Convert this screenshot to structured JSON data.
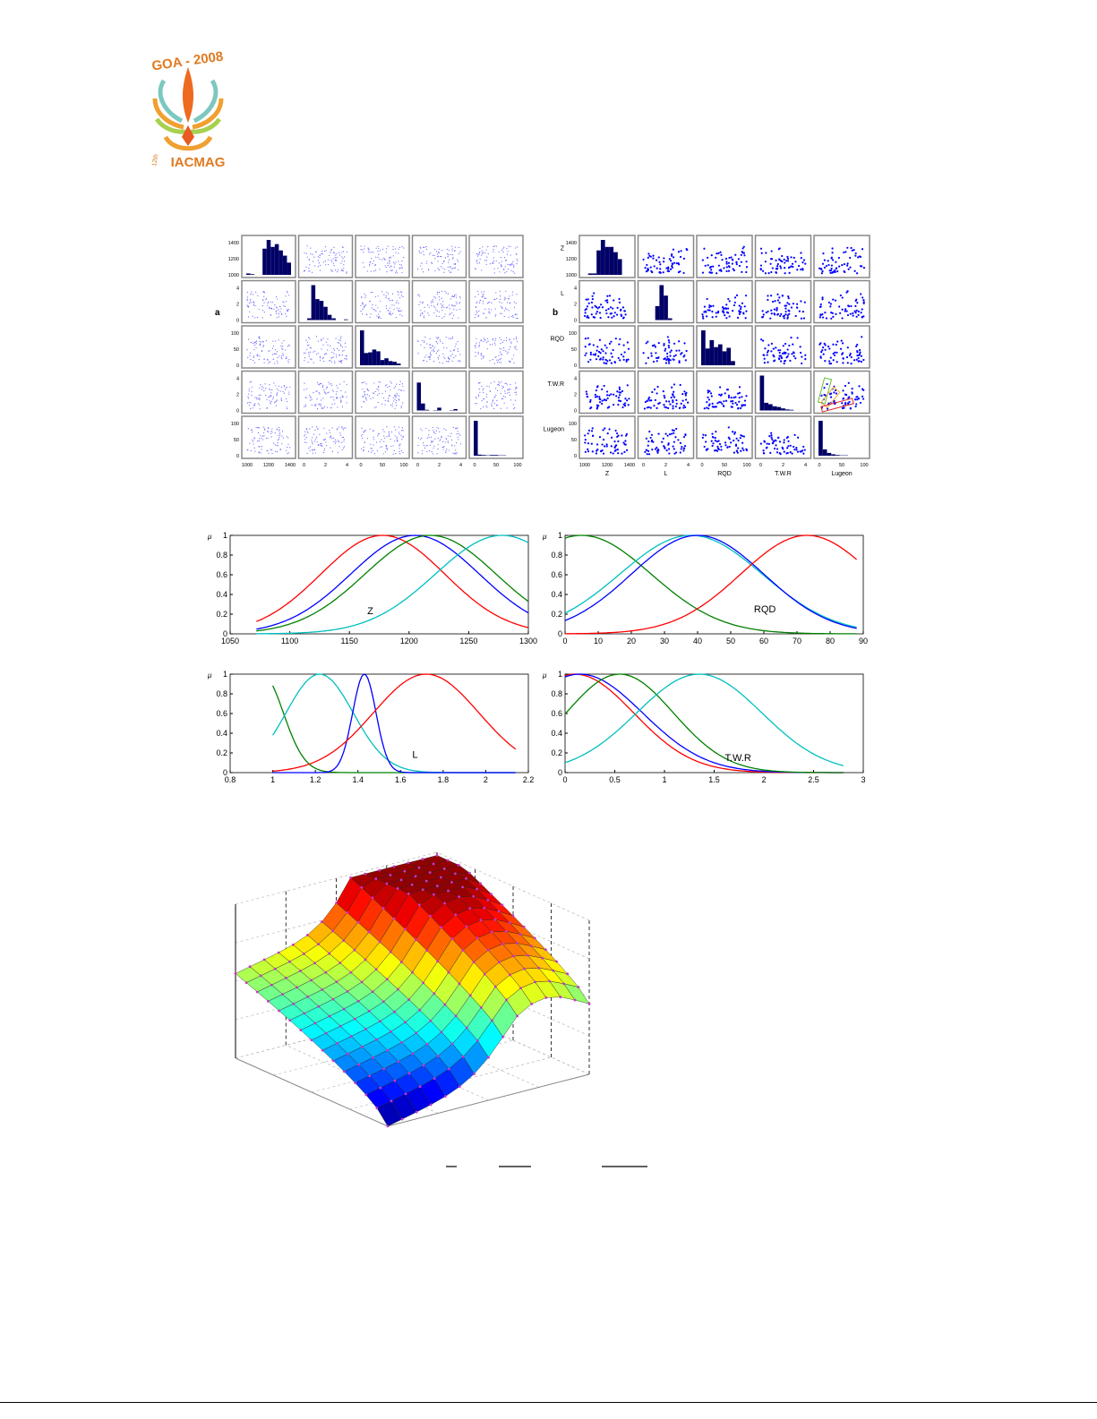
{
  "logo": {
    "text_top": "GOA - 2008",
    "text_bottom": "IACMAG",
    "edition": "12th"
  },
  "chart_data": [
    {
      "type": "scatter-matrix",
      "panel_letter": "a",
      "variables": [
        "",
        "",
        "",
        "",
        ""
      ],
      "row_ticks": [
        [
          "1400",
          "1200",
          "1000"
        ],
        [
          "4",
          "2",
          "0"
        ],
        [
          "100",
          "50",
          "0"
        ],
        [
          "4",
          "2",
          "0"
        ],
        [
          "100",
          "50",
          "0"
        ]
      ],
      "col_ticks": [
        [
          "1000",
          "1200",
          "1400"
        ],
        [
          "0",
          "2",
          "4"
        ],
        [
          "0",
          "50",
          "100"
        ],
        [
          "0",
          "2",
          "4"
        ],
        [
          "0",
          "50",
          "100"
        ]
      ],
      "hist": [
        [
          4,
          2,
          0,
          0,
          75,
          100,
          80,
          88,
          70,
          55,
          35
        ],
        [
          0,
          5,
          100,
          60,
          55,
          38,
          15,
          5,
          0,
          0,
          2
        ],
        [
          100,
          35,
          37,
          45,
          40,
          15,
          20,
          12,
          10,
          5,
          0
        ],
        [
          80,
          20,
          2,
          0,
          1,
          8,
          0,
          0,
          1,
          4,
          0
        ],
        [
          100,
          3,
          2,
          1,
          2,
          2,
          1,
          1,
          0,
          0,
          0
        ]
      ],
      "marker_color": "#6a6aff",
      "hist_color": "#000066"
    },
    {
      "type": "scatter-matrix",
      "panel_letter": "b",
      "variables": [
        "Z",
        "L",
        "RQD",
        "T.W.R",
        "Lugeon"
      ],
      "row_ticks": [
        [
          "1400",
          "1200",
          "1000"
        ],
        [
          "4",
          "2",
          "0"
        ],
        [
          "100",
          "50",
          "0"
        ],
        [
          "4",
          "2",
          "0"
        ],
        [
          "100",
          "50",
          "0"
        ]
      ],
      "col_ticks": [
        [
          "1000",
          "1200",
          "1400"
        ],
        [
          "0",
          "2",
          "4"
        ],
        [
          "0",
          "50",
          "100"
        ],
        [
          "0",
          "2",
          "4"
        ],
        [
          "0",
          "50",
          "100"
        ]
      ],
      "hist": [
        [
          0,
          4,
          4,
          70,
          100,
          80,
          80,
          65,
          45,
          0,
          0
        ],
        [
          0,
          0,
          0,
          40,
          100,
          70,
          5,
          0,
          0,
          0,
          0
        ],
        [
          100,
          48,
          72,
          52,
          60,
          40,
          50,
          12,
          0,
          0,
          0
        ],
        [
          100,
          22,
          18,
          12,
          10,
          6,
          3,
          2,
          0,
          0,
          0
        ],
        [
          100,
          18,
          8,
          4,
          2,
          1,
          1,
          0,
          0,
          0,
          0
        ]
      ],
      "marker_color": "#0000ff",
      "hist_color": "#000066",
      "highlight_boxes": [
        {
          "color": "#66bb33"
        },
        {
          "color": "#f0b030"
        },
        {
          "color": "#dd2222"
        }
      ]
    },
    {
      "type": "line",
      "label": "Z",
      "ylabel": "μ",
      "xlim": [
        1050,
        1300
      ],
      "ylim": [
        0,
        1
      ],
      "xticks": [
        "1050",
        "1100",
        "1150",
        "1200",
        "1250",
        "1300"
      ],
      "yticks": [
        "0",
        "0.2",
        "0.4",
        "0.6",
        "0.8",
        "1"
      ],
      "series": [
        {
          "color": "#ff0000",
          "center": 1178,
          "sigma": 52,
          "x_range": [
            1072,
            1300
          ]
        },
        {
          "color": "#0000ff",
          "center": 1205,
          "sigma": 54,
          "x_range": [
            1072,
            1300
          ]
        },
        {
          "color": "#008000",
          "center": 1218,
          "sigma": 55,
          "x_range": [
            1072,
            1300
          ]
        },
        {
          "color": "#00bfbf",
          "center": 1278,
          "sigma": 56,
          "x_range": [
            1072,
            1300
          ]
        }
      ]
    },
    {
      "type": "line",
      "label": "RQD",
      "ylabel": "μ",
      "xlim": [
        0,
        90
      ],
      "ylim": [
        0,
        1
      ],
      "xticks": [
        "0",
        "10",
        "20",
        "30",
        "40",
        "50",
        "60",
        "70",
        "80",
        "90"
      ],
      "yticks": [
        "0",
        "0.2",
        "0.4",
        "0.6",
        "0.8",
        "1"
      ],
      "series": [
        {
          "color": "#008000",
          "center": 5,
          "sigma": 21,
          "x_range": [
            0,
            88
          ]
        },
        {
          "color": "#00bfbf",
          "center": 38,
          "sigma": 21.5,
          "x_range": [
            0,
            88
          ]
        },
        {
          "color": "#0000ff",
          "center": 40,
          "sigma": 20,
          "x_range": [
            0,
            88
          ]
        },
        {
          "color": "#ff0000",
          "center": 73,
          "sigma": 20,
          "x_range": [
            0,
            88
          ]
        }
      ]
    },
    {
      "type": "line",
      "label": "L",
      "ylabel": "μ",
      "xlim": [
        0.8,
        2.2
      ],
      "ylim": [
        0,
        1
      ],
      "xticks": [
        "0.8",
        "1",
        "1.2",
        "1.4",
        "1.6",
        "1.8",
        "2",
        "2.2"
      ],
      "yticks": [
        "0",
        "0.2",
        "0.4",
        "0.6",
        "0.8",
        "1"
      ],
      "series": [
        {
          "color": "#008000",
          "center": 0.95,
          "sigma": 0.1,
          "x_range": [
            1,
            2.14
          ]
        },
        {
          "color": "#00bfbf",
          "center": 1.22,
          "sigma": 0.158,
          "x_range": [
            1,
            2.14
          ]
        },
        {
          "color": "#0000ff",
          "center": 1.43,
          "sigma": 0.055,
          "x_range": [
            1,
            2.14
          ]
        },
        {
          "color": "#ff0000",
          "center": 1.72,
          "sigma": 0.248,
          "x_range": [
            1,
            2.14
          ]
        }
      ]
    },
    {
      "type": "line",
      "label": "T.W.R",
      "ylabel": "μ",
      "xlim": [
        0,
        3
      ],
      "ylim": [
        0,
        1
      ],
      "xticks": [
        "0",
        "0.5",
        "1",
        "1.5",
        "2",
        "2.5",
        "3"
      ],
      "yticks": [
        "0",
        "0.2",
        "0.4",
        "0.6",
        "0.8",
        "1"
      ],
      "series": [
        {
          "color": "#ff0000",
          "center": 0.1,
          "sigma": 0.59,
          "x_range": [
            0,
            2.8
          ]
        },
        {
          "color": "#0000ff",
          "center": 0.15,
          "sigma": 0.63,
          "x_range": [
            0,
            2.8
          ]
        },
        {
          "color": "#008000",
          "center": 0.55,
          "sigma": 0.54,
          "x_range": [
            0,
            2.8
          ]
        },
        {
          "color": "#00bfbf",
          "center": 1.35,
          "sigma": 0.63,
          "x_range": [
            0,
            2.8
          ]
        }
      ]
    },
    {
      "type": "surface",
      "colormap": "jet",
      "marker_color": "#cc33cc",
      "grid": true
    }
  ]
}
